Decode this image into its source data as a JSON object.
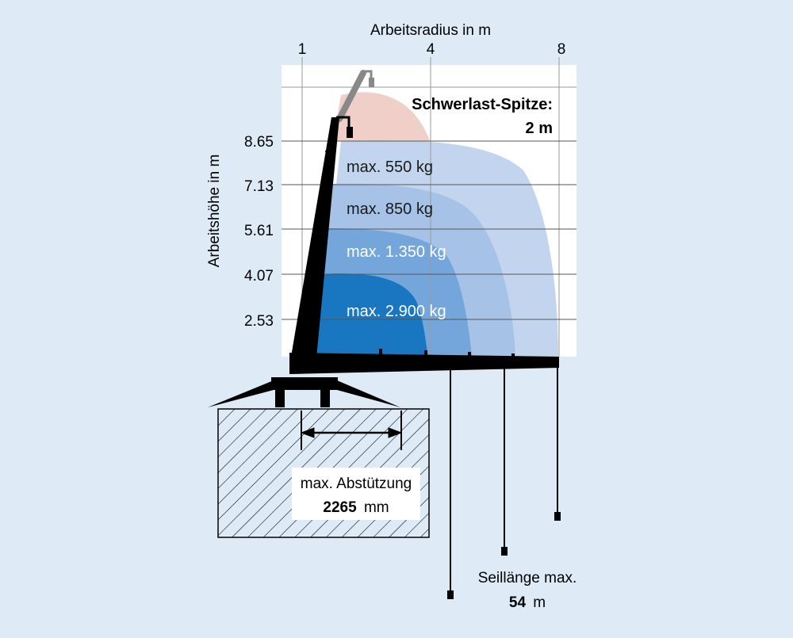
{
  "chart_data": {
    "type": "area",
    "xlabel": "Arbeitsradius in m",
    "ylabel": "Arbeitshöhe in m",
    "x_ticks": [
      "1",
      "4",
      "8"
    ],
    "y_ticks": [
      "8.65",
      "7.13",
      "5.61",
      "4.07",
      "2.53"
    ],
    "series": [
      {
        "name": "max. 550 kg",
        "color": "#c3d5ee"
      },
      {
        "name": "max. 850 kg",
        "color": "#a6c2e6"
      },
      {
        "name": "max. 1.350 kg",
        "color": "#74a6dc"
      },
      {
        "name": "max. 2.900 kg",
        "color": "#1976c0"
      }
    ],
    "jib_zone": {
      "title": "Schwerlast-Spitze:",
      "value": "2 m",
      "color": "#efcfc8"
    }
  },
  "outrigger": {
    "label": "max. Abstützung",
    "value": "2265",
    "unit": "mm"
  },
  "rope": {
    "label": "Seillänge max.",
    "value": "54",
    "unit": "m"
  }
}
